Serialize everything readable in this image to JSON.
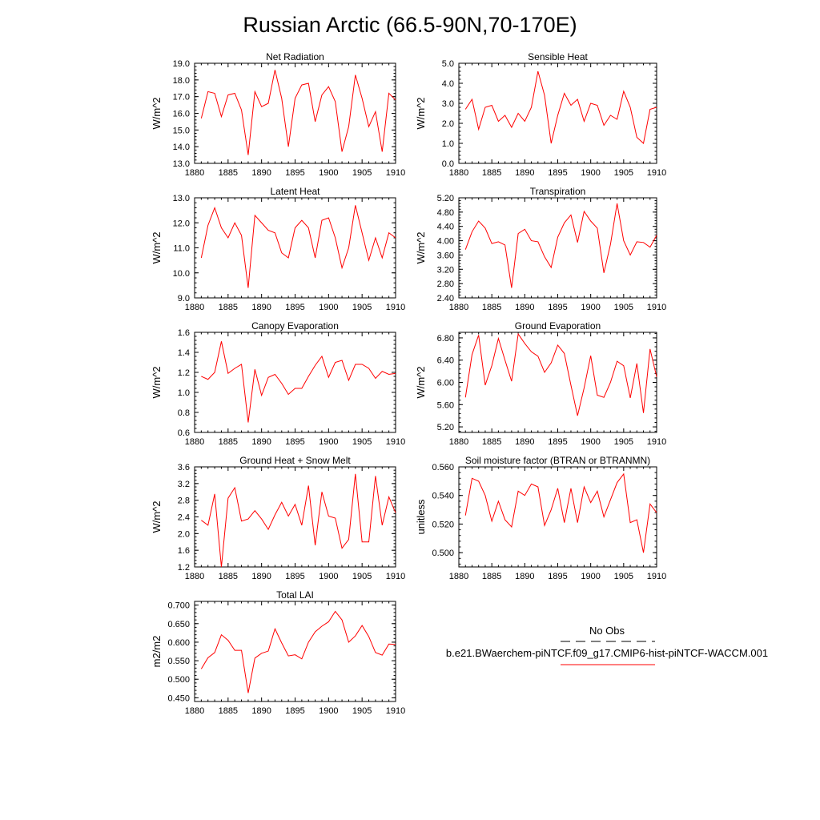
{
  "figure": {
    "title": "Russian Arctic (66.5-90N,70-170E)"
  },
  "legend": {
    "obs_label": "No Obs",
    "obs_color": "#000000",
    "case_label": "b.e21.BWaerchem-piNTCF.f09_g17.CMIP6-hist-piNTCF-WACCM.001",
    "case_color": "#ff0000"
  },
  "chart_data": [
    {
      "type": "line",
      "title": "Net Radiation",
      "ylabel": "W/m^2",
      "xlim": [
        1880,
        1910
      ],
      "ylim": [
        13.0,
        19.0
      ],
      "xticks": [
        1880,
        1885,
        1890,
        1895,
        1900,
        1905,
        1910
      ],
      "xtick_labels": [
        "1880",
        "1885",
        "1890",
        "1895",
        "1900",
        "1905",
        "1910"
      ],
      "yticks": [
        13.0,
        14.0,
        15.0,
        16.0,
        17.0,
        18.0,
        19.0
      ],
      "ytick_labels": [
        "13.0",
        "14.0",
        "15.0",
        "16.0",
        "17.0",
        "18.0",
        "19.0"
      ],
      "x": [
        1881,
        1882,
        1883,
        1884,
        1885,
        1886,
        1887,
        1888,
        1889,
        1890,
        1891,
        1892,
        1893,
        1894,
        1895,
        1896,
        1897,
        1898,
        1899,
        1900,
        1901,
        1902,
        1903,
        1904,
        1905,
        1906,
        1907,
        1908,
        1909,
        1910
      ],
      "series": [
        {
          "name": "b.e21.BWaerchem-piNTCF.f09_g17.CMIP6-hist-piNTCF-WACCM.001",
          "color": "#ff0000",
          "values": [
            15.7,
            17.3,
            17.2,
            15.8,
            17.1,
            17.2,
            16.2,
            13.5,
            17.3,
            16.4,
            16.6,
            18.6,
            16.9,
            14.0,
            16.9,
            17.7,
            17.8,
            15.5,
            17.1,
            17.6,
            16.7,
            13.7,
            15.2,
            18.3,
            16.9,
            15.2,
            16.1,
            13.7,
            17.2,
            16.8
          ]
        }
      ]
    },
    {
      "type": "line",
      "title": "Sensible Heat",
      "ylabel": "W/m^2",
      "xlim": [
        1880,
        1910
      ],
      "ylim": [
        0.0,
        5.0
      ],
      "xticks": [
        1880,
        1885,
        1890,
        1895,
        1900,
        1905,
        1910
      ],
      "xtick_labels": [
        "1880",
        "1885",
        "1890",
        "1895",
        "1900",
        "1905",
        "1910"
      ],
      "yticks": [
        0.0,
        1.0,
        2.0,
        3.0,
        4.0,
        5.0
      ],
      "ytick_labels": [
        "0.0",
        "1.0",
        "2.0",
        "3.0",
        "4.0",
        "5.0"
      ],
      "x": [
        1881,
        1882,
        1883,
        1884,
        1885,
        1886,
        1887,
        1888,
        1889,
        1890,
        1891,
        1892,
        1893,
        1894,
        1895,
        1896,
        1897,
        1898,
        1899,
        1900,
        1901,
        1902,
        1903,
        1904,
        1905,
        1906,
        1907,
        1908,
        1909,
        1910
      ],
      "series": [
        {
          "name": "b.e21.BWaerchem-piNTCF.f09_g17.CMIP6-hist-piNTCF-WACCM.001",
          "color": "#ff0000",
          "values": [
            2.7,
            3.2,
            1.7,
            2.8,
            2.9,
            2.1,
            2.4,
            1.8,
            2.5,
            2.1,
            2.8,
            4.6,
            3.4,
            1.0,
            2.4,
            3.5,
            2.9,
            3.2,
            2.1,
            3.0,
            2.9,
            1.9,
            2.4,
            2.2,
            3.6,
            2.8,
            1.3,
            1.0,
            2.7,
            2.8
          ]
        }
      ]
    },
    {
      "type": "line",
      "title": "Latent Heat",
      "ylabel": "W/m^2",
      "xlim": [
        1880,
        1910
      ],
      "ylim": [
        9.0,
        13.0
      ],
      "xticks": [
        1880,
        1885,
        1890,
        1895,
        1900,
        1905,
        1910
      ],
      "xtick_labels": [
        "1880",
        "1885",
        "1890",
        "1895",
        "1900",
        "1905",
        "1910"
      ],
      "yticks": [
        9.0,
        10.0,
        11.0,
        12.0,
        13.0
      ],
      "ytick_labels": [
        "9.0",
        "10.0",
        "11.0",
        "12.0",
        "13.0"
      ],
      "x": [
        1881,
        1882,
        1883,
        1884,
        1885,
        1886,
        1887,
        1888,
        1889,
        1890,
        1891,
        1892,
        1893,
        1894,
        1895,
        1896,
        1897,
        1898,
        1899,
        1900,
        1901,
        1902,
        1903,
        1904,
        1905,
        1906,
        1907,
        1908,
        1909,
        1910
      ],
      "series": [
        {
          "name": "b.e21.BWaerchem-piNTCF.f09_g17.CMIP6-hist-piNTCF-WACCM.001",
          "color": "#ff0000",
          "values": [
            10.6,
            11.9,
            12.6,
            11.8,
            11.4,
            12.0,
            11.5,
            9.4,
            12.3,
            12.0,
            11.7,
            11.6,
            10.8,
            10.6,
            11.8,
            12.1,
            11.8,
            10.6,
            12.1,
            12.2,
            11.4,
            10.2,
            11.0,
            12.7,
            11.6,
            10.5,
            11.4,
            10.6,
            11.6,
            11.4
          ]
        }
      ]
    },
    {
      "type": "line",
      "title": "Transpiration",
      "ylabel": "W/m^2",
      "xlim": [
        1880,
        1910
      ],
      "ylim": [
        2.4,
        5.2
      ],
      "xticks": [
        1880,
        1885,
        1890,
        1895,
        1900,
        1905,
        1910
      ],
      "xtick_labels": [
        "1880",
        "1885",
        "1890",
        "1895",
        "1900",
        "1905",
        "1910"
      ],
      "yticks": [
        2.4,
        2.8,
        3.2,
        3.6,
        4.0,
        4.4,
        4.8,
        5.2
      ],
      "ytick_labels": [
        "2.40",
        "2.80",
        "3.20",
        "3.60",
        "4.00",
        "4.40",
        "4.80",
        "5.20"
      ],
      "x": [
        1881,
        1882,
        1883,
        1884,
        1885,
        1886,
        1887,
        1888,
        1889,
        1890,
        1891,
        1892,
        1893,
        1894,
        1895,
        1896,
        1897,
        1898,
        1899,
        1900,
        1901,
        1902,
        1903,
        1904,
        1905,
        1906,
        1907,
        1908,
        1909,
        1910
      ],
      "series": [
        {
          "name": "b.e21.BWaerchem-piNTCF.f09_g17.CMIP6-hist-piNTCF-WACCM.001",
          "color": "#ff0000",
          "values": [
            3.75,
            4.25,
            4.55,
            4.35,
            3.92,
            3.97,
            3.88,
            2.68,
            4.2,
            4.32,
            4.0,
            3.97,
            3.55,
            3.25,
            4.1,
            4.5,
            4.72,
            3.95,
            4.82,
            4.55,
            4.35,
            3.1,
            3.9,
            5.04,
            4.0,
            3.6,
            3.97,
            3.95,
            3.82,
            4.15
          ]
        }
      ]
    },
    {
      "type": "line",
      "title": "Canopy Evaporation",
      "ylabel": "W/m^2",
      "xlim": [
        1880,
        1910
      ],
      "ylim": [
        0.6,
        1.6
      ],
      "xticks": [
        1880,
        1885,
        1890,
        1895,
        1900,
        1905,
        1910
      ],
      "xtick_labels": [
        "1880",
        "1885",
        "1890",
        "1895",
        "1900",
        "1905",
        "1910"
      ],
      "yticks": [
        0.6,
        0.8,
        1.0,
        1.2,
        1.4,
        1.6
      ],
      "ytick_labels": [
        "0.6",
        "0.8",
        "1.0",
        "1.2",
        "1.4",
        "1.6"
      ],
      "x": [
        1881,
        1882,
        1883,
        1884,
        1885,
        1886,
        1887,
        1888,
        1889,
        1890,
        1891,
        1892,
        1893,
        1894,
        1895,
        1896,
        1897,
        1898,
        1899,
        1900,
        1901,
        1902,
        1903,
        1904,
        1905,
        1906,
        1907,
        1908,
        1909,
        1910
      ],
      "series": [
        {
          "name": "b.e21.BWaerchem-piNTCF.f09_g17.CMIP6-hist-piNTCF-WACCM.001",
          "color": "#ff0000",
          "values": [
            1.16,
            1.13,
            1.2,
            1.51,
            1.19,
            1.24,
            1.28,
            0.7,
            1.23,
            0.97,
            1.15,
            1.18,
            1.09,
            0.98,
            1.04,
            1.04,
            1.16,
            1.27,
            1.36,
            1.15,
            1.3,
            1.32,
            1.12,
            1.28,
            1.28,
            1.24,
            1.14,
            1.21,
            1.18,
            1.19
          ]
        }
      ]
    },
    {
      "type": "line",
      "title": "Ground Evaporation",
      "ylabel": "W/m^2",
      "xlim": [
        1880,
        1910
      ],
      "ylim": [
        5.1,
        6.9
      ],
      "xticks": [
        1880,
        1885,
        1890,
        1895,
        1900,
        1905,
        1910
      ],
      "xtick_labels": [
        "1880",
        "1885",
        "1890",
        "1895",
        "1900",
        "1905",
        "1910"
      ],
      "yticks": [
        5.2,
        5.6,
        6.0,
        6.4,
        6.8
      ],
      "ytick_labels": [
        "5.20",
        "5.60",
        "6.00",
        "6.40",
        "6.80"
      ],
      "x": [
        1881,
        1882,
        1883,
        1884,
        1885,
        1886,
        1887,
        1888,
        1889,
        1890,
        1891,
        1892,
        1893,
        1894,
        1895,
        1896,
        1897,
        1898,
        1899,
        1900,
        1901,
        1902,
        1903,
        1904,
        1905,
        1906,
        1907,
        1908,
        1909,
        1910
      ],
      "series": [
        {
          "name": "b.e21.BWaerchem-piNTCF.f09_g17.CMIP6-hist-piNTCF-WACCM.001",
          "color": "#ff0000",
          "values": [
            5.73,
            6.5,
            6.85,
            5.95,
            6.3,
            6.79,
            6.4,
            6.02,
            6.87,
            6.7,
            6.55,
            6.47,
            6.18,
            6.35,
            6.67,
            6.52,
            5.95,
            5.4,
            5.9,
            6.48,
            5.77,
            5.73,
            6.0,
            6.38,
            6.3,
            5.72,
            6.34,
            5.45,
            6.6,
            6.1
          ]
        }
      ]
    },
    {
      "type": "line",
      "title": "Ground Heat + Snow Melt",
      "ylabel": "W/m^2",
      "xlim": [
        1880,
        1910
      ],
      "ylim": [
        1.2,
        3.6
      ],
      "xticks": [
        1880,
        1885,
        1890,
        1895,
        1900,
        1905,
        1910
      ],
      "xtick_labels": [
        "1880",
        "1885",
        "1890",
        "1895",
        "1900",
        "1905",
        "1910"
      ],
      "yticks": [
        1.2,
        1.6,
        2.0,
        2.4,
        2.8,
        3.2,
        3.6
      ],
      "ytick_labels": [
        "1.2",
        "1.6",
        "2.0",
        "2.4",
        "2.8",
        "3.2",
        "3.6"
      ],
      "x": [
        1881,
        1882,
        1883,
        1884,
        1885,
        1886,
        1887,
        1888,
        1889,
        1890,
        1891,
        1892,
        1893,
        1894,
        1895,
        1896,
        1897,
        1898,
        1899,
        1900,
        1901,
        1902,
        1903,
        1904,
        1905,
        1906,
        1907,
        1908,
        1909,
        1910
      ],
      "series": [
        {
          "name": "b.e21.BWaerchem-piNTCF.f09_g17.CMIP6-hist-piNTCF-WACCM.001",
          "color": "#ff0000",
          "values": [
            2.32,
            2.2,
            2.95,
            1.2,
            2.85,
            3.1,
            2.3,
            2.35,
            2.55,
            2.35,
            2.1,
            2.45,
            2.75,
            2.42,
            2.7,
            2.2,
            3.15,
            1.72,
            3.0,
            2.42,
            2.37,
            1.65,
            1.86,
            3.43,
            1.8,
            1.8,
            3.38,
            2.2,
            2.88,
            2.5
          ]
        }
      ]
    },
    {
      "type": "line",
      "title": "Soil moisture factor (BTRAN or BTRANMN)",
      "ylabel": "unitless",
      "xlim": [
        1880,
        1910
      ],
      "ylim": [
        0.49,
        0.56
      ],
      "xticks": [
        1880,
        1885,
        1890,
        1895,
        1900,
        1905,
        1910
      ],
      "xtick_labels": [
        "1880",
        "1885",
        "1890",
        "1895",
        "1900",
        "1905",
        "1910"
      ],
      "yticks": [
        0.5,
        0.52,
        0.54,
        0.56
      ],
      "ytick_labels": [
        "0.500",
        "0.520",
        "0.540",
        "0.560"
      ],
      "x": [
        1881,
        1882,
        1883,
        1884,
        1885,
        1886,
        1887,
        1888,
        1889,
        1890,
        1891,
        1892,
        1893,
        1894,
        1895,
        1896,
        1897,
        1898,
        1899,
        1900,
        1901,
        1902,
        1903,
        1904,
        1905,
        1906,
        1907,
        1908,
        1909,
        1910
      ],
      "series": [
        {
          "name": "b.e21.BWaerchem-piNTCF.f09_g17.CMIP6-hist-piNTCF-WACCM.001",
          "color": "#ff0000",
          "values": [
            0.526,
            0.552,
            0.55,
            0.54,
            0.522,
            0.536,
            0.523,
            0.518,
            0.543,
            0.54,
            0.548,
            0.546,
            0.519,
            0.53,
            0.545,
            0.521,
            0.545,
            0.521,
            0.546,
            0.535,
            0.543,
            0.525,
            0.537,
            0.549,
            0.555,
            0.521,
            0.523,
            0.5,
            0.534,
            0.528
          ]
        }
      ]
    },
    {
      "type": "line",
      "title": "Total LAI",
      "ylabel": "m2/m2",
      "xlim": [
        1880,
        1910
      ],
      "ylim": [
        0.44,
        0.71
      ],
      "xticks": [
        1880,
        1885,
        1890,
        1895,
        1900,
        1905,
        1910
      ],
      "xtick_labels": [
        "1880",
        "1885",
        "1890",
        "1895",
        "1900",
        "1905",
        "1910"
      ],
      "yticks": [
        0.45,
        0.5,
        0.55,
        0.6,
        0.65,
        0.7
      ],
      "ytick_labels": [
        "0.450",
        "0.500",
        "0.550",
        "0.600",
        "0.650",
        "0.700"
      ],
      "x": [
        1881,
        1882,
        1883,
        1884,
        1885,
        1886,
        1887,
        1888,
        1889,
        1890,
        1891,
        1892,
        1893,
        1894,
        1895,
        1896,
        1897,
        1898,
        1899,
        1900,
        1901,
        1902,
        1903,
        1904,
        1905,
        1906,
        1907,
        1908,
        1909,
        1910
      ],
      "series": [
        {
          "name": "b.e21.BWaerchem-piNTCF.f09_g17.CMIP6-hist-piNTCF-WACCM.001",
          "color": "#ff0000",
          "values": [
            0.528,
            0.558,
            0.572,
            0.62,
            0.605,
            0.578,
            0.578,
            0.463,
            0.557,
            0.57,
            0.576,
            0.636,
            0.598,
            0.563,
            0.566,
            0.555,
            0.6,
            0.628,
            0.643,
            0.655,
            0.683,
            0.66,
            0.6,
            0.617,
            0.645,
            0.615,
            0.572,
            0.565,
            0.595,
            0.594
          ]
        }
      ]
    }
  ]
}
